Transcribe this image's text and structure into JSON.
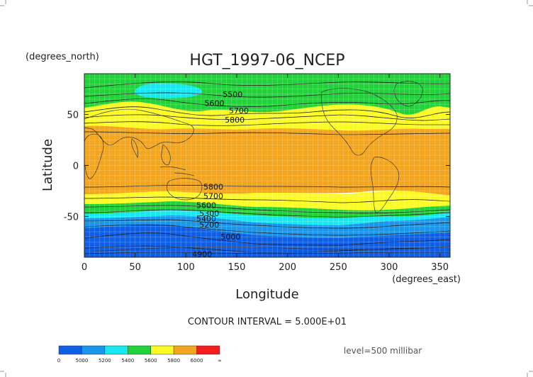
{
  "chart_data": {
    "type": "heatmap",
    "title": "HGT_1997-06_NCEP",
    "ylabel": "Latitude",
    "xlabel": "Longitude",
    "y_units": "(degrees_north)",
    "x_units": "(degrees_east)",
    "xlim": [
      0,
      360
    ],
    "ylim": [
      -90,
      90
    ],
    "x_ticks": [
      0,
      50,
      100,
      150,
      200,
      250,
      300,
      350
    ],
    "y_ticks": [
      50,
      0,
      -50
    ],
    "grid": true,
    "contour_interval": "CONTOUR INTERVAL = 5.000E+01",
    "level": "level=500 millibar",
    "color_scale": {
      "labels": [
        "0",
        "5000",
        "5200",
        "5400",
        "5600",
        "5800",
        "6000",
        "∞"
      ],
      "colors": [
        "#0f5fe6",
        "#1a96ea",
        "#18e8f0",
        "#22d23a",
        "#fbfb23",
        "#f2a51e",
        "#f41c1c"
      ]
    },
    "contour_labels": [
      {
        "text": "5500",
        "x": 146,
        "y": 70
      },
      {
        "text": "5600",
        "x": 128,
        "y": 61
      },
      {
        "text": "5700",
        "x": 152,
        "y": 54
      },
      {
        "text": "5800",
        "x": 148,
        "y": 45
      },
      {
        "text": "5800",
        "x": 127,
        "y": -21
      },
      {
        "text": "5700",
        "x": 127,
        "y": -30
      },
      {
        "text": "5600",
        "x": 120,
        "y": -39
      },
      {
        "text": "5300",
        "x": 123,
        "y": -47
      },
      {
        "text": "5400",
        "x": 120,
        "y": -52
      },
      {
        "text": "5200",
        "x": 123,
        "y": -58
      },
      {
        "text": "5000",
        "x": 144,
        "y": -70
      },
      {
        "text": "4900",
        "x": 116,
        "y": -87
      }
    ],
    "bands_by_latitude": [
      {
        "from": 90,
        "to": 78,
        "range": "5400-5600"
      },
      {
        "from": 78,
        "to": 65,
        "range": "5400-5600"
      },
      {
        "from": 65,
        "to": 45,
        "range": "5600-5800"
      },
      {
        "from": 45,
        "to": -30,
        "range": "5800-6000"
      },
      {
        "from": -30,
        "to": -42,
        "range": "5600-5800"
      },
      {
        "from": -42,
        "to": -50,
        "range": "5400-5600"
      },
      {
        "from": -50,
        "to": -57,
        "range": "5200-5400"
      },
      {
        "from": -57,
        "to": -65,
        "range": "5000-5200"
      },
      {
        "from": -65,
        "to": -90,
        "range": "0-5000"
      }
    ]
  }
}
